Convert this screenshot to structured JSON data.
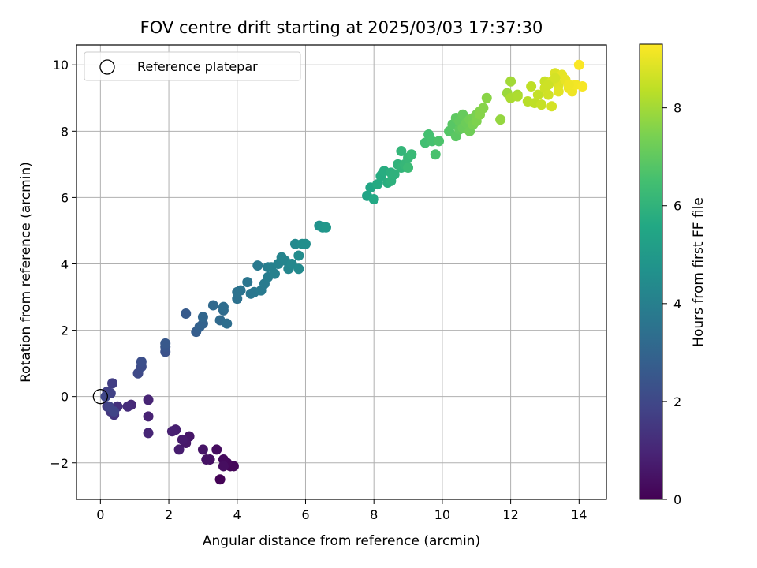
{
  "chart_data": {
    "type": "scatter",
    "title": "FOV centre drift starting at 2025/03/03 17:37:30",
    "xlabel": "Angular distance from reference (arcmin)",
    "ylabel": "Rotation from reference (arcmin)",
    "xlim": [
      -0.7,
      14.8
    ],
    "ylim": [
      -3.1,
      10.6
    ],
    "xticks": [
      0,
      2,
      4,
      6,
      8,
      10,
      12,
      14
    ],
    "yticks": [
      -2,
      0,
      2,
      4,
      6,
      8,
      10
    ],
    "ytick_labels": [
      "−2",
      "0",
      "2",
      "4",
      "6",
      "8",
      "10"
    ],
    "grid": true,
    "legend": {
      "position": "top-left",
      "entries": [
        {
          "label": "Reference platepar",
          "marker": "open-circle",
          "x": 0,
          "y": 0
        }
      ]
    },
    "colorbar": {
      "label": "Hours from first FF file",
      "colormap": "viridis",
      "range": [
        0,
        9.3
      ],
      "ticks": [
        0,
        2,
        4,
        6,
        8
      ]
    },
    "series": [
      {
        "x": [
          3.5,
          3.8,
          3.9,
          3.7,
          3.6,
          3.4,
          3.6,
          3.2,
          3.1,
          3.0,
          2.6,
          2.5,
          2.2,
          2.4,
          2.3,
          2.2,
          2.1,
          1.4,
          1.4,
          1.4,
          0.9,
          0.8,
          0.5,
          0.4,
          0.3,
          0.2,
          0.35,
          0.2,
          0.3,
          0.25,
          0.4,
          0.15,
          1.1,
          1.2,
          1.2,
          1.9,
          1.9,
          1.9,
          2.5,
          2.8,
          2.9,
          3.0,
          3.0,
          3.3,
          3.5,
          3.6,
          3.6,
          3.7,
          4.0,
          4.0,
          4.1,
          4.3,
          4.4,
          4.5,
          4.6,
          4.7,
          4.8,
          4.9,
          4.9,
          5.0,
          5.1,
          5.2,
          5.3,
          5.4,
          5.5,
          5.6,
          5.7,
          5.8,
          5.8,
          5.9,
          6.0,
          6.4,
          6.5,
          6.6,
          7.8,
          7.9,
          8.0,
          8.1,
          8.2,
          8.3,
          8.4,
          8.5,
          8.5,
          8.6,
          8.7,
          8.8,
          8.8,
          8.9,
          9.0,
          9.1,
          9.0,
          9.5,
          9.6,
          9.7,
          9.8,
          9.9,
          10.2,
          10.3,
          10.4,
          10.4,
          10.5,
          10.5,
          10.6,
          10.6,
          10.7,
          10.8,
          10.8,
          10.9,
          10.9,
          11.0,
          11.0,
          11.1,
          11.2,
          11.3,
          11.1,
          11.7,
          11.9,
          12.0,
          12.2,
          12.0,
          12.2,
          12.5,
          12.7,
          12.8,
          12.9,
          13.0,
          13.0,
          13.1,
          13.2,
          13.2,
          13.3,
          13.4,
          13.4,
          13.5,
          13.6,
          13.7,
          13.8,
          13.9,
          14.0,
          13.7,
          14.1,
          13.1,
          13.3,
          12.6
        ],
        "y": [
          -2.5,
          -2.1,
          -2.1,
          -2.0,
          -1.9,
          -1.6,
          -2.1,
          -1.9,
          -1.9,
          -1.6,
          -1.2,
          -1.4,
          -1.0,
          -1.3,
          -1.6,
          -1.0,
          -1.05,
          -0.6,
          -0.1,
          -1.1,
          -0.25,
          -0.3,
          -0.3,
          -0.55,
          -0.45,
          -0.3,
          0.4,
          0.15,
          0.1,
          -0.3,
          -0.45,
          0.0,
          0.7,
          0.9,
          1.05,
          1.35,
          1.5,
          1.6,
          2.5,
          1.95,
          2.1,
          2.2,
          2.4,
          2.75,
          2.3,
          2.6,
          2.7,
          2.2,
          2.95,
          3.15,
          3.2,
          3.45,
          3.1,
          3.15,
          3.95,
          3.2,
          3.4,
          3.6,
          3.9,
          3.9,
          3.7,
          4.0,
          4.2,
          4.1,
          3.85,
          4.0,
          4.6,
          3.85,
          4.25,
          4.6,
          4.6,
          5.15,
          5.1,
          5.1,
          6.05,
          6.3,
          5.95,
          6.4,
          6.65,
          6.8,
          6.45,
          6.75,
          6.5,
          6.7,
          7.0,
          6.9,
          7.4,
          7.0,
          7.2,
          7.3,
          6.9,
          7.65,
          7.9,
          7.7,
          7.3,
          7.7,
          8.0,
          8.2,
          7.85,
          8.4,
          8.05,
          8.3,
          8.5,
          8.1,
          8.25,
          8.0,
          8.35,
          8.4,
          8.2,
          8.5,
          8.3,
          8.6,
          8.7,
          9.0,
          8.5,
          8.35,
          9.15,
          9.5,
          9.1,
          9.0,
          9.05,
          8.9,
          8.85,
          9.1,
          8.8,
          9.5,
          9.3,
          9.1,
          8.75,
          9.5,
          9.75,
          9.4,
          9.2,
          9.7,
          9.55,
          9.3,
          9.2,
          9.4,
          10.0,
          9.4,
          9.35,
          9.4,
          9.6,
          9.35
        ],
        "c": [
          0.05,
          0.1,
          0.15,
          0.2,
          0.25,
          0.3,
          0.35,
          0.4,
          0.45,
          0.5,
          0.55,
          0.6,
          0.65,
          0.7,
          0.75,
          0.8,
          0.85,
          0.9,
          0.95,
          1.0,
          1.1,
          1.2,
          1.3,
          1.4,
          1.5,
          1.6,
          1.7,
          1.75,
          1.8,
          1.85,
          1.9,
          1.95,
          2.05,
          2.15,
          2.25,
          2.35,
          2.45,
          2.55,
          2.65,
          2.75,
          2.85,
          2.95,
          3.05,
          3.15,
          3.2,
          3.25,
          3.3,
          3.35,
          3.45,
          3.5,
          3.55,
          3.6,
          3.65,
          3.7,
          3.75,
          3.8,
          3.85,
          3.9,
          3.95,
          4.0,
          4.05,
          4.1,
          4.15,
          4.2,
          4.25,
          4.3,
          4.35,
          4.4,
          4.45,
          4.5,
          4.55,
          4.7,
          4.8,
          4.9,
          5.4,
          5.5,
          5.6,
          5.65,
          5.7,
          5.75,
          5.8,
          5.85,
          5.9,
          5.95,
          6.0,
          6.05,
          6.1,
          6.15,
          6.2,
          6.25,
          6.3,
          6.45,
          6.5,
          6.55,
          6.6,
          6.65,
          6.8,
          6.85,
          6.9,
          6.95,
          7.0,
          7.05,
          7.1,
          7.15,
          7.2,
          7.25,
          7.3,
          7.35,
          7.4,
          7.45,
          7.5,
          7.55,
          7.6,
          7.65,
          7.6,
          7.8,
          7.9,
          8.0,
          8.05,
          8.1,
          8.15,
          8.3,
          8.4,
          8.45,
          8.5,
          8.55,
          8.6,
          8.65,
          8.7,
          8.75,
          8.8,
          8.85,
          8.9,
          8.95,
          9.0,
          9.05,
          9.1,
          9.15,
          9.25,
          9.1,
          9.2,
          8.6,
          8.7,
          8.4
        ]
      }
    ]
  }
}
